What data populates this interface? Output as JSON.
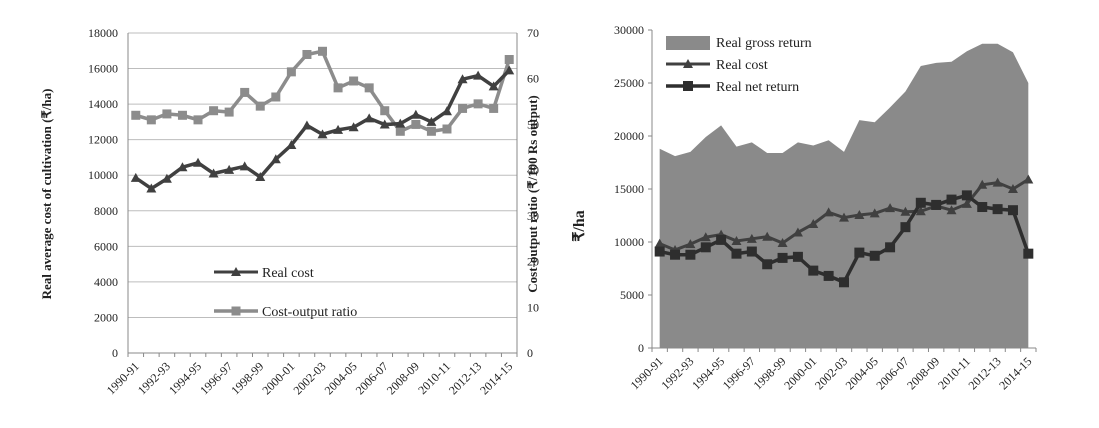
{
  "colors": {
    "real_cost": "#404040",
    "cost_output_ratio": "#8c8c8c",
    "gross_area": "#8a8a8a",
    "net_return": "#2e2e2e",
    "grid": "#bdbdbd"
  },
  "chart_data": [
    {
      "type": "line",
      "categories": [
        "1990-91",
        "1991-92",
        "1992-93",
        "1993-94",
        "1994-95",
        "1995-96",
        "1996-97",
        "1997-98",
        "1998-99",
        "1999-00",
        "2000-01",
        "2001-02",
        "2002-03",
        "2003-04",
        "2004-05",
        "2005-06",
        "2006-07",
        "2007-08",
        "2008-09",
        "2009-10",
        "2010-11",
        "2011-12",
        "2012-13",
        "2013-14",
        "2014-15"
      ],
      "tick_labels": [
        "1990-91",
        "1992-93",
        "1994-95",
        "1996-97",
        "1998-99",
        "2000-01",
        "2002-03",
        "2004-05",
        "2006-07",
        "2008-09",
        "2010-11",
        "2012-13",
        "2014-15"
      ],
      "ylabel": "Real average cost of cultivation (₹/ha)",
      "y2label": "Cost-output ratio  (₹/100 Rs output)",
      "ylim": [
        0,
        18000
      ],
      "yticks": [
        0,
        2000,
        4000,
        6000,
        8000,
        10000,
        12000,
        14000,
        16000,
        18000
      ],
      "y2lim": [
        0,
        70
      ],
      "y2ticks": [
        0,
        10,
        20,
        30,
        40,
        50,
        60,
        70
      ],
      "grid": true,
      "legend_position": "bottom-center",
      "series": [
        {
          "name": "Real cost",
          "axis": "left",
          "marker": "triangle",
          "values": [
            9850,
            9250,
            9800,
            10450,
            10700,
            10100,
            10300,
            10500,
            9900,
            10900,
            11700,
            12800,
            12300,
            12550,
            12700,
            13200,
            12850,
            12900,
            13400,
            13000,
            13600,
            15400,
            15600,
            15000,
            15900
          ]
        },
        {
          "name": "Cost-output ratio",
          "axis": "right",
          "marker": "square",
          "values": [
            52,
            51,
            52.3,
            52,
            51,
            53,
            52.7,
            57,
            54,
            56,
            61.5,
            65.3,
            66,
            58,
            59.5,
            58,
            53,
            48.5,
            50,
            48.5,
            49,
            53.5,
            54.5,
            53.5,
            64.2
          ]
        }
      ]
    },
    {
      "type": "line",
      "categories": [
        "1990-91",
        "1991-92",
        "1992-93",
        "1993-94",
        "1994-95",
        "1995-96",
        "1996-97",
        "1997-98",
        "1998-99",
        "1999-00",
        "2000-01",
        "2001-02",
        "2002-03",
        "2003-04",
        "2004-05",
        "2005-06",
        "2006-07",
        "2007-08",
        "2008-09",
        "2009-10",
        "2010-11",
        "2011-12",
        "2012-13",
        "2013-14",
        "2014-15"
      ],
      "tick_labels": [
        "1990-91",
        "1992-93",
        "1994-95",
        "1996-97",
        "1998-99",
        "2000-01",
        "2002-03",
        "2004-05",
        "2006-07",
        "2008-09",
        "2010-11",
        "2012-13",
        "2014-15"
      ],
      "ylabel": "₹/ha",
      "ylim": [
        0,
        30000
      ],
      "yticks": [
        0,
        5000,
        10000,
        15000,
        20000,
        25000,
        30000
      ],
      "grid": false,
      "legend_position": "top-left",
      "series": [
        {
          "name": "Real gross return",
          "type": "area",
          "values": [
            18800,
            18100,
            18500,
            19900,
            21000,
            19000,
            19400,
            18400,
            18400,
            19400,
            19100,
            19600,
            18500,
            21500,
            21300,
            22700,
            24200,
            26600,
            26900,
            27000,
            28000,
            28700,
            28700,
            27900,
            25000
          ]
        },
        {
          "name": "Real cost",
          "marker": "triangle",
          "values": [
            9850,
            9250,
            9800,
            10450,
            10700,
            10100,
            10300,
            10500,
            9900,
            10900,
            11700,
            12800,
            12300,
            12550,
            12700,
            13200,
            12850,
            12900,
            13400,
            13000,
            13600,
            15400,
            15600,
            15000,
            15900
          ]
        },
        {
          "name": "Real net return",
          "marker": "square",
          "values": [
            9100,
            8800,
            8800,
            9500,
            10200,
            8900,
            9100,
            7900,
            8500,
            8600,
            7300,
            6800,
            6200,
            9000,
            8700,
            9500,
            11400,
            13700,
            13500,
            14000,
            14400,
            13300,
            13100,
            13000,
            8900
          ]
        }
      ]
    }
  ]
}
